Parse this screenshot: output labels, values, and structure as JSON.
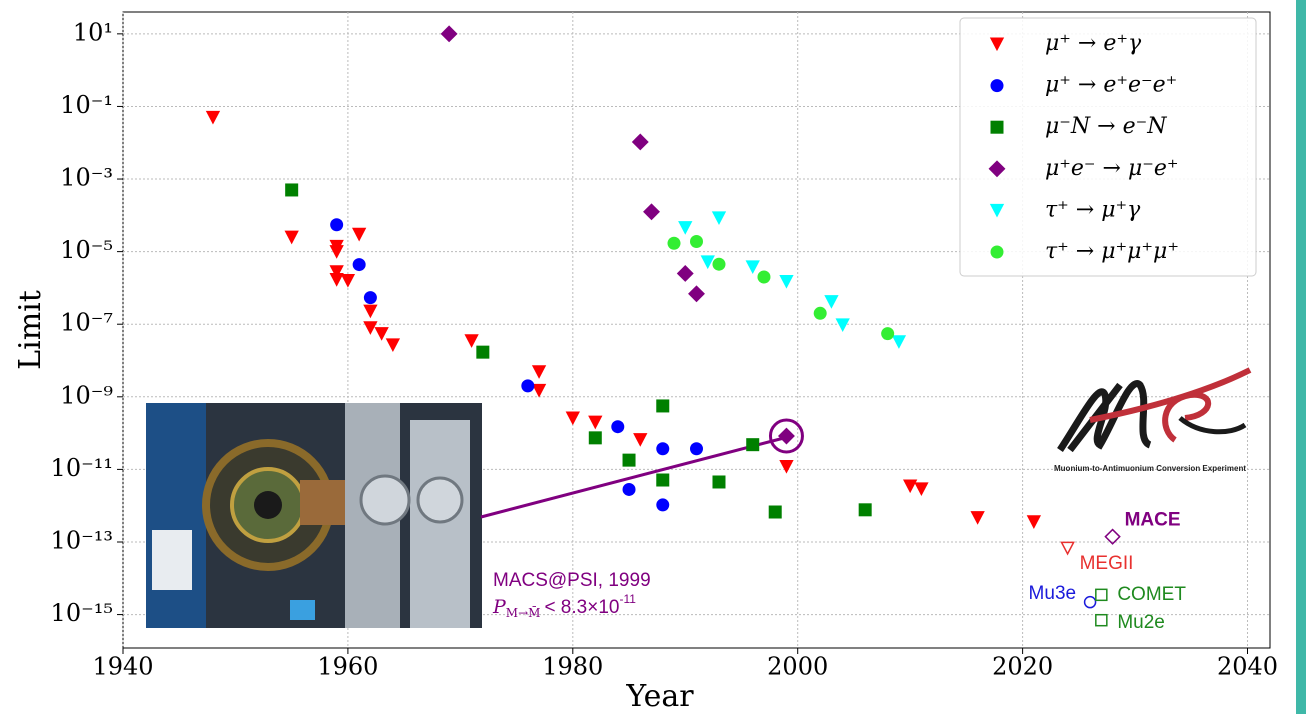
{
  "chart_data": {
    "type": "scatter",
    "x_label": "Year",
    "y_label": "Limit",
    "xlim": [
      1940,
      2042
    ],
    "xticks": [
      1940,
      1960,
      1980,
      2000,
      2020,
      2040
    ],
    "ylim": [
      1.2e-16,
      40
    ],
    "log_y": true,
    "yticks": [
      {
        "value": 10,
        "label": "10¹"
      },
      {
        "value": 0.1,
        "label": "10⁻¹"
      },
      {
        "value": 0.001,
        "label": "10⁻³"
      },
      {
        "value": 1e-05,
        "label": "10⁻⁵"
      },
      {
        "value": 1e-07,
        "label": "10⁻⁷"
      },
      {
        "value": 1e-09,
        "label": "10⁻⁹"
      },
      {
        "value": 1e-11,
        "label": "10⁻¹¹"
      },
      {
        "value": 1e-13,
        "label": "10⁻¹³"
      },
      {
        "value": 1e-15,
        "label": "10⁻¹⁵"
      }
    ],
    "grid": true,
    "legend": "upper right",
    "series": [
      {
        "name": "μ⁺ → e⁺γ",
        "color": "#ff0000",
        "marker": "v",
        "x": [
          1948,
          1955,
          1959,
          1959,
          1959,
          1959,
          1960,
          1961,
          1962,
          1962,
          1963,
          1964,
          1971,
          1977,
          1977,
          1980,
          1982,
          1986,
          1999,
          2010,
          2011,
          2016,
          2021
        ],
        "values": [
          0.05,
          2.5e-05,
          1.4e-05,
          1e-05,
          2.8e-06,
          1.7e-06,
          1.6e-06,
          3e-05,
          2.3e-07,
          8e-08,
          5.5e-08,
          2.7e-08,
          3.5e-08,
          4.9e-09,
          1.5e-09,
          2.6e-10,
          2e-10,
          6.6e-11,
          1.2e-11,
          3.5e-12,
          2.9e-12,
          4.7e-13,
          3.6e-13
        ]
      },
      {
        "name": "μ⁺ → e⁺e⁻e⁺",
        "color": "#0000ff",
        "marker": "o",
        "x": [
          1959,
          1961,
          1962,
          1976,
          1984,
          1985,
          1988,
          1988,
          1991
        ],
        "values": [
          5.5e-05,
          4.4e-06,
          5.4e-07,
          2e-09,
          1.5e-10,
          2.8e-12,
          3.7e-11,
          1.05e-12,
          3.7e-11
        ]
      },
      {
        "name": "μ⁻N → e⁻N",
        "color": "#008000",
        "marker": "s",
        "x": [
          1955,
          1972,
          1982,
          1985,
          1988,
          1988,
          1993,
          1996,
          1998,
          2006
        ],
        "values": [
          0.0005,
          1.7e-08,
          7.4e-11,
          1.8e-11,
          5.6e-10,
          5.1e-12,
          4.5e-12,
          4.8e-11,
          6.7e-13,
          7.7e-13
        ]
      },
      {
        "name": "μ⁺e⁻ → μ⁻e⁺",
        "color": "#800080",
        "marker": "D",
        "x": [
          1969,
          1986,
          1987,
          1990,
          1991,
          1999
        ],
        "values": [
          10,
          0.0105,
          0.000125,
          2.5e-06,
          6.9e-07,
          8.3e-11
        ]
      },
      {
        "name": "τ⁺ → μ⁺γ",
        "color": "#00ffff",
        "marker": "v",
        "x": [
          1990,
          1993,
          1992,
          1996,
          1999,
          2003,
          2004,
          2009
        ],
        "values": [
          4.6e-05,
          8.5e-05,
          5.2e-06,
          3.8e-06,
          1.5e-06,
          4.2e-07,
          9.6e-08,
          3.3e-08
        ]
      },
      {
        "name": "τ⁺ → μ⁺μ⁺μ⁺",
        "color": "#33ee33",
        "marker": "o",
        "x": [
          1989,
          1991,
          1993,
          1997,
          2002,
          2008
        ],
        "values": [
          1.7e-05,
          1.9e-05,
          4.5e-06,
          2e-06,
          2e-07,
          5.5e-08
        ]
      }
    ],
    "projections": [
      {
        "name": "MACE",
        "color": "#800080",
        "marker": "D",
        "x": 2028,
        "value": 1.4e-13
      },
      {
        "name": "MEGII",
        "color": "#e8312f",
        "marker": "v",
        "x": 2024,
        "value": 6.9e-14
      },
      {
        "name": "Mu3e",
        "color": "#1a1adb",
        "marker": "o",
        "x": 2026,
        "value": 2.2e-15
      },
      {
        "name": "COMET",
        "color": "#1f8a1f",
        "marker": "s",
        "x": 2027,
        "value": 3.5e-15
      },
      {
        "name": "Mu2e",
        "color": "#1f8a1f",
        "marker": "s",
        "x": 2027,
        "value": 7e-16
      }
    ],
    "annotation": {
      "label": "MACS@PSI, 1999",
      "symbol": "P",
      "subscript": "M→M̄",
      "text": "< 8.3×10",
      "exponent": "-11"
    },
    "logo_caption": "Muonium-to-Antimuonium Conversion Experiment"
  }
}
